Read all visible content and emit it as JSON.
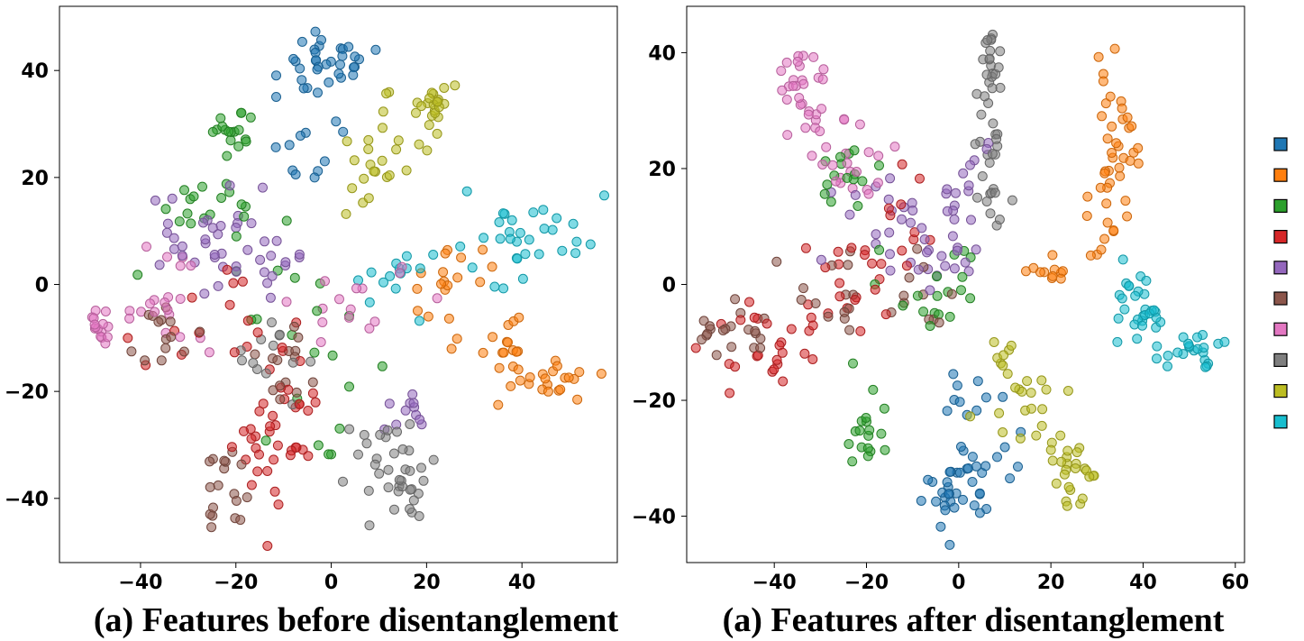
{
  "captions": {
    "left": "(a) Features before disentanglement",
    "right": "(a) Features after disentanglement"
  },
  "palette": [
    "#1f77b4",
    "#ff7f0e",
    "#2ca02c",
    "#d62728",
    "#9467bd",
    "#8c564b",
    "#e377c2",
    "#7f7f7f",
    "#bcbd22",
    "#17becf"
  ],
  "legend": {
    "placement": "right",
    "labels": []
  },
  "chart_data": [
    {
      "type": "scatter",
      "title": "",
      "xlabel": "",
      "ylabel": "",
      "xlim": [
        -57,
        60
      ],
      "ylim": [
        -52,
        52
      ],
      "xticks": [
        -40,
        -20,
        0,
        20,
        40
      ],
      "yticks": [
        -40,
        -20,
        0,
        20,
        40
      ],
      "xtick_labels": [
        "−40",
        "−20",
        "0",
        "20",
        "40"
      ],
      "ytick_labels": [
        "−40",
        "−20",
        "0",
        "20",
        "40"
      ],
      "grid": false,
      "marker_alpha": 0.55,
      "clusters": [
        {
          "class": 0,
          "color": "#1f77b4",
          "n": 45,
          "parts": [
            [
              0,
              42,
              5,
              3,
              0.5
            ],
            [
              -8,
              38,
              4,
              3,
              0.2
            ],
            [
              -3,
              27,
              6,
              8,
              0.3
            ]
          ]
        },
        {
          "class": 1,
          "color": "#ff7f0e",
          "n": 55,
          "parts": [
            [
              45,
              -17,
              5,
              2,
              0.4
            ],
            [
              38,
              -10,
              3,
              3,
              0.25
            ],
            [
              25,
              0,
              5,
              5,
              0.35
            ]
          ]
        },
        {
          "class": 2,
          "color": "#2ca02c",
          "n": 55,
          "parts": [
            [
              -20,
              28,
              2,
              2,
              0.3
            ],
            [
              -25,
              14,
              6,
              6,
              0.35
            ],
            [
              -5,
              -10,
              8,
              8,
              0.35
            ]
          ]
        },
        {
          "class": 3,
          "color": "#d62728",
          "n": 55,
          "parts": [
            [
              -16,
              -30,
              3,
              6,
              0.35
            ],
            [
              -7,
              -32,
              1,
              1,
              0.1
            ],
            [
              -25,
              -10,
              8,
              5,
              0.3
            ],
            [
              -8,
              -22,
              4,
              3,
              0.25
            ]
          ]
        },
        {
          "class": 4,
          "color": "#9467bd",
          "n": 55,
          "parts": [
            [
              -15,
              5,
              8,
              6,
              0.45
            ],
            [
              15,
              -23,
              3,
              2,
              0.2
            ],
            [
              -30,
              5,
              5,
              5,
              0.35
            ]
          ]
        },
        {
          "class": 5,
          "color": "#8c564b",
          "n": 45,
          "parts": [
            [
              -22,
              -38,
              2,
              4,
              0.4
            ],
            [
              -35,
              -10,
              4,
              4,
              0.3
            ],
            [
              -8,
              -15,
              5,
              4,
              0.3
            ]
          ]
        },
        {
          "class": 6,
          "color": "#e377c2",
          "n": 50,
          "parts": [
            [
              -48,
              -7,
              3,
              2,
              0.3
            ],
            [
              -35,
              -3,
              5,
              5,
              0.4
            ],
            [
              5,
              -3,
              8,
              3,
              0.3
            ]
          ]
        },
        {
          "class": 7,
          "color": "#7f7f7f",
          "n": 50,
          "parts": [
            [
              15,
              -37,
              3,
              6,
              0.55
            ],
            [
              8,
              -30,
              3,
              3,
              0.2
            ],
            [
              -10,
              -12,
              4,
              4,
              0.25
            ]
          ]
        },
        {
          "class": 8,
          "color": "#bcbd22",
          "n": 45,
          "parts": [
            [
              22,
              34,
              2,
              2,
              0.4
            ],
            [
              12,
              27,
              4,
              4,
              0.4
            ],
            [
              8,
              18,
              3,
              3,
              0.2
            ]
          ]
        },
        {
          "class": 9,
          "color": "#17becf",
          "n": 45,
          "parts": [
            [
              42,
              10,
              7,
              4,
              0.55
            ],
            [
              12,
              2,
              4,
              4,
              0.3
            ],
            [
              36,
              4,
              3,
              4,
              0.15
            ]
          ]
        }
      ]
    },
    {
      "type": "scatter",
      "title": "",
      "xlabel": "",
      "ylabel": "",
      "xlim": [
        -59,
        62
      ],
      "ylim": [
        -48,
        48
      ],
      "xticks": [
        -40,
        -20,
        0,
        20,
        40,
        60
      ],
      "yticks": [
        -40,
        -20,
        0,
        20,
        40
      ],
      "xtick_labels": [
        "−40",
        "−20",
        "0",
        "20",
        "40",
        "60"
      ],
      "ytick_labels": [
        "−40",
        "−20",
        "0",
        "20",
        "40"
      ],
      "grid": false,
      "marker_alpha": 0.55,
      "clusters": [
        {
          "class": 0,
          "color": "#1f77b4",
          "n": 50,
          "parts": [
            [
              -3,
              -37,
              4,
              3,
              0.5
            ],
            [
              5,
              -30,
              5,
              4,
              0.35
            ],
            [
              3,
              -20,
              3,
              4,
              0.15
            ]
          ]
        },
        {
          "class": 1,
          "color": "#ff7f0e",
          "n": 55,
          "parts": [
            [
              35,
              28,
              2,
              5,
              0.45
            ],
            [
              32,
              15,
              2,
              5,
              0.35
            ],
            [
              20,
              2,
              3,
              2,
              0.2
            ]
          ]
        },
        {
          "class": 2,
          "color": "#2ca02c",
          "n": 50,
          "parts": [
            [
              -20,
              -24,
              2,
              4,
              0.35
            ],
            [
              -22,
              18,
              5,
              4,
              0.3
            ],
            [
              -5,
              0,
              7,
              5,
              0.35
            ]
          ]
        },
        {
          "class": 3,
          "color": "#d62728",
          "n": 55,
          "parts": [
            [
              -43,
              -10,
              7,
              4,
              0.45
            ],
            [
              -25,
              0,
              5,
              5,
              0.3
            ],
            [
              -15,
              10,
              5,
              5,
              0.25
            ]
          ]
        },
        {
          "class": 4,
          "color": "#9467bd",
          "n": 50,
          "parts": [
            [
              -17,
              10,
              6,
              6,
              0.4
            ],
            [
              -5,
              5,
              5,
              5,
              0.35
            ],
            [
              2,
              18,
              3,
              3,
              0.25
            ]
          ]
        },
        {
          "class": 5,
          "color": "#8c564b",
          "n": 45,
          "parts": [
            [
              -50,
              -8,
              4,
              2,
              0.4
            ],
            [
              -28,
              -3,
              6,
              4,
              0.35
            ],
            [
              -8,
              -2,
              4,
              3,
              0.25
            ]
          ]
        },
        {
          "class": 6,
          "color": "#e377c2",
          "n": 50,
          "parts": [
            [
              -35,
              35,
              3,
              3,
              0.35
            ],
            [
              -30,
              27,
              4,
              4,
              0.35
            ],
            [
              -22,
              20,
              4,
              3,
              0.3
            ]
          ]
        },
        {
          "class": 7,
          "color": "#7f7f7f",
          "n": 45,
          "parts": [
            [
              7,
              38,
              1,
              4,
              0.45
            ],
            [
              6,
              25,
              2,
              6,
              0.35
            ],
            [
              7,
              15,
              2,
              3,
              0.2
            ]
          ]
        },
        {
          "class": 8,
          "color": "#bcbd22",
          "n": 50,
          "parts": [
            [
              25,
              -32,
              4,
              3,
              0.5
            ],
            [
              18,
              -22,
              5,
              4,
              0.35
            ],
            [
              8,
              -12,
              3,
              3,
              0.15
            ]
          ]
        },
        {
          "class": 9,
          "color": "#17becf",
          "n": 50,
          "parts": [
            [
              50,
              -11,
              5,
              2,
              0.45
            ],
            [
              40,
              -6,
              4,
              2,
              0.3
            ],
            [
              38,
              0,
              2,
              3,
              0.25
            ]
          ]
        }
      ]
    }
  ]
}
